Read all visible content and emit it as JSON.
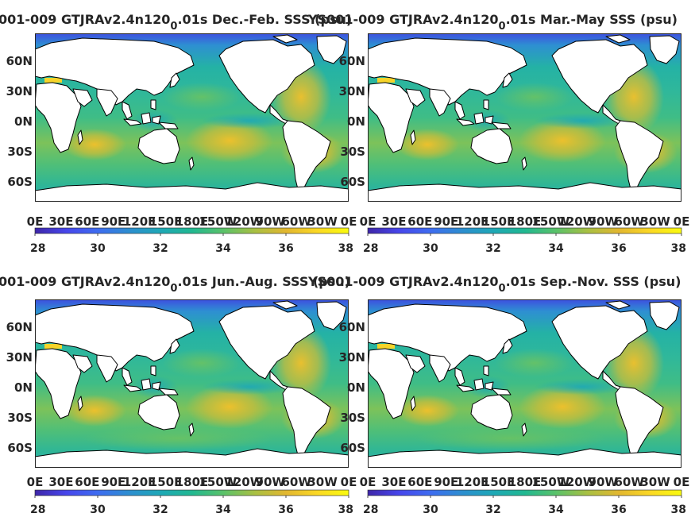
{
  "colors": {
    "colormap": [
      "#3e26a8",
      "#4746eb",
      "#3e6cf0",
      "#2d8ed0",
      "#1ea8b6",
      "#21b891",
      "#5ac26a",
      "#a8c043",
      "#e2b730",
      "#fbd824",
      "#f9fb0e"
    ],
    "land": "#ffffff",
    "coast": "#000000",
    "text": "#262626"
  },
  "chart_data": [
    {
      "type": "heatmap",
      "title": "001-009 GTJRAv2.4n120",
      "title_subscript": "0",
      "title_suffix": ".01s Dec.-Feb. SSS (psu)",
      "season": "DJF",
      "x_tick_labels": [
        "0E",
        "30E",
        "60E",
        "90E",
        "120E",
        "150E",
        "180E",
        "150W",
        "120W",
        "90W",
        "60W",
        "30W",
        "0E"
      ],
      "y_tick_labels": [
        "60N",
        "30N",
        "0N",
        "30S",
        "60S"
      ],
      "colorbar": {
        "range": [
          28,
          38
        ],
        "tick_labels": [
          "28",
          "30",
          "32",
          "34",
          "36",
          "38"
        ]
      }
    },
    {
      "type": "heatmap",
      "title": "YS001-009 GTJRAv2.4n120",
      "title_subscript": "0",
      "title_suffix": ".01s Mar.-May SSS (psu)",
      "season": "MAM",
      "x_tick_labels": [
        "0E",
        "30E",
        "60E",
        "90E",
        "120E",
        "150E",
        "180E",
        "150W",
        "120W",
        "90W",
        "60W",
        "30W",
        "0E"
      ],
      "y_tick_labels": [
        "60N",
        "30N",
        "0N",
        "30S",
        "60S"
      ],
      "colorbar": {
        "range": [
          28,
          38
        ],
        "tick_labels": [
          "28",
          "30",
          "32",
          "34",
          "36",
          "38"
        ]
      }
    },
    {
      "type": "heatmap",
      "title": "001-009 GTJRAv2.4n120",
      "title_subscript": "0",
      "title_suffix": ".01s Jun.-Aug. SSS (psu)",
      "season": "JJA",
      "x_tick_labels": [
        "0E",
        "30E",
        "60E",
        "90E",
        "120E",
        "150E",
        "180E",
        "150W",
        "120W",
        "90W",
        "60W",
        "30W",
        "0E"
      ],
      "y_tick_labels": [
        "60N",
        "30N",
        "0N",
        "30S",
        "60S"
      ],
      "colorbar": {
        "range": [
          28,
          38
        ],
        "tick_labels": [
          "28",
          "30",
          "32",
          "34",
          "36",
          "38"
        ]
      }
    },
    {
      "type": "heatmap",
      "title": "YS001-009 GTJRAv2.4n120",
      "title_subscript": "0",
      "title_suffix": ".01s Sep.-Nov. SSS (psu)",
      "season": "SON",
      "x_tick_labels": [
        "0E",
        "30E",
        "60E",
        "90E",
        "120E",
        "150E",
        "180E",
        "150W",
        "120W",
        "90W",
        "60W",
        "30W",
        "0E"
      ],
      "y_tick_labels": [
        "60N",
        "30N",
        "0N",
        "30S",
        "60S"
      ],
      "colorbar": {
        "range": [
          28,
          38
        ],
        "tick_labels": [
          "28",
          "30",
          "32",
          "34",
          "36",
          "38"
        ]
      }
    }
  ]
}
